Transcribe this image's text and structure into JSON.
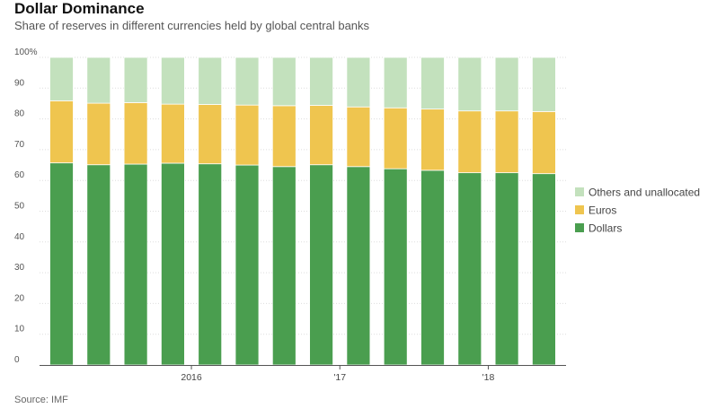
{
  "title": "Dollar Dominance",
  "subtitle": "Share of reserves in different currencies held by global central banks",
  "source": "Source: IMF",
  "colors": {
    "dollars": "#4a9e4f",
    "euros": "#efc54f",
    "others": "#c3e1bd",
    "grid": "#dddddd",
    "axis": "#555555"
  },
  "chart_data": {
    "type": "bar",
    "stacked": true,
    "ylim": [
      0,
      100
    ],
    "yticks": [
      "100%",
      "90",
      "80",
      "70",
      "60",
      "50",
      "40",
      "30",
      "20",
      "10",
      "0"
    ],
    "xtick_labels": [
      {
        "label": "2016",
        "after_bar": 3
      },
      {
        "label": "'17",
        "after_bar": 7
      },
      {
        "label": "'18",
        "after_bar": 11
      }
    ],
    "legend": [
      "Others and unallocated",
      "Euros",
      "Dollars"
    ],
    "legend_position": "right",
    "series": [
      {
        "name": "Dollars",
        "values": [
          65.7,
          65.1,
          65.3,
          65.6,
          65.4,
          65.0,
          64.5,
          65.1,
          64.5,
          63.8,
          63.3,
          62.5,
          62.5,
          62.2
        ]
      },
      {
        "name": "Euros",
        "values": [
          20.2,
          20.0,
          20.0,
          19.2,
          19.3,
          19.5,
          19.8,
          19.3,
          19.4,
          19.8,
          19.9,
          20.1,
          20.1,
          20.2
        ]
      },
      {
        "name": "Others and unallocated",
        "values": [
          14.1,
          14.9,
          14.7,
          15.2,
          15.3,
          15.5,
          15.7,
          15.6,
          16.1,
          16.4,
          16.8,
          17.4,
          17.4,
          17.6
        ]
      }
    ]
  }
}
